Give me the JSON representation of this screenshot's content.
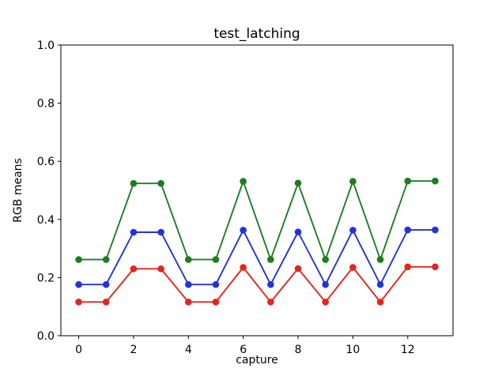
{
  "chart_data": {
    "type": "line",
    "title": "test_latching",
    "xlabel": "capture",
    "ylabel": "RGB means",
    "x": [
      0,
      1,
      2,
      3,
      4,
      5,
      6,
      7,
      8,
      9,
      10,
      11,
      12,
      13
    ],
    "series": [
      {
        "name": "green",
        "color": "#1d7d21",
        "values": [
          0.262,
          0.262,
          0.524,
          0.524,
          0.262,
          0.262,
          0.531,
          0.262,
          0.525,
          0.262,
          0.531,
          0.262,
          0.532,
          0.532
        ]
      },
      {
        "name": "blue",
        "color": "#2433d9",
        "values": [
          0.176,
          0.176,
          0.356,
          0.356,
          0.176,
          0.176,
          0.363,
          0.176,
          0.357,
          0.176,
          0.363,
          0.176,
          0.364,
          0.364
        ]
      },
      {
        "name": "red",
        "color": "#e3251d",
        "values": [
          0.116,
          0.116,
          0.23,
          0.23,
          0.116,
          0.116,
          0.235,
          0.116,
          0.231,
          0.116,
          0.235,
          0.116,
          0.237,
          0.237
        ]
      }
    ],
    "xlim": [
      -0.65,
      13.65
    ],
    "ylim": [
      0.0,
      1.0
    ],
    "xticks": [
      0,
      2,
      4,
      6,
      8,
      10,
      12
    ],
    "yticks": [
      "0.0",
      "0.2",
      "0.4",
      "0.6",
      "0.8",
      "1.0"
    ],
    "grid": false,
    "legend": "none",
    "marker": "circle",
    "axis_color": "#000000"
  }
}
